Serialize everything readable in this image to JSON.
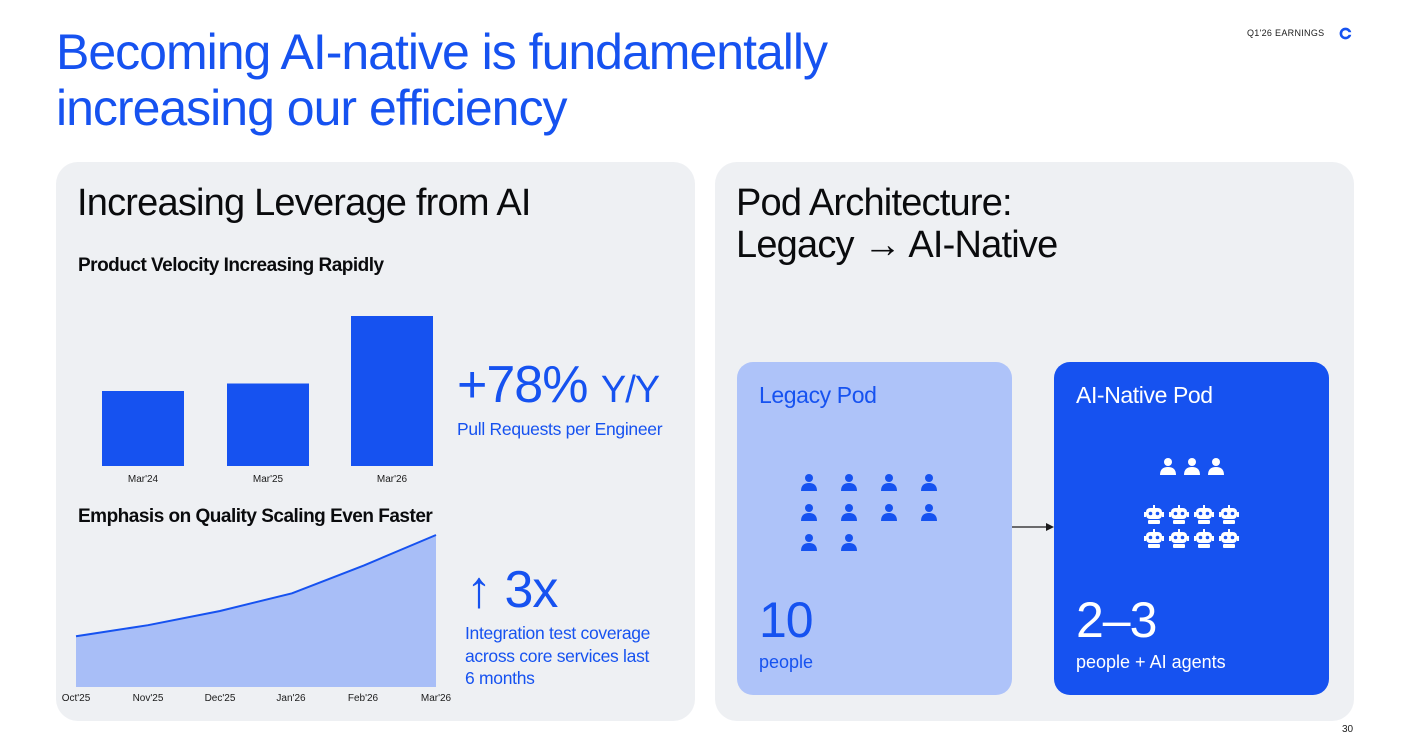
{
  "header": {
    "title_line1": "Becoming AI-native is fundamentally",
    "title_line2": "increasing our efficiency",
    "report_tag": "Q1'26 EARNINGS",
    "page_number": "30"
  },
  "left_panel": {
    "title": "Increasing Leverage from AI",
    "velocity": {
      "subtitle": "Product Velocity Increasing Rapidly",
      "stat_value": "+78%",
      "stat_suffix": "Y/Y",
      "stat_desc": "Pull Requests per Engineer"
    },
    "quality": {
      "subtitle": "Emphasis on Quality Scaling Even Faster",
      "stat_arrow": "↑",
      "stat_value": "3x",
      "stat_desc_lines": [
        "Integration test coverage",
        "across core services last",
        "6 months"
      ]
    }
  },
  "right_panel": {
    "title_line1": "Pod Architecture:",
    "title_line2": "Legacy → AI-Native",
    "legacy_pod": {
      "label": "Legacy Pod",
      "count": "10",
      "desc": "people",
      "person_icons": 10
    },
    "ai_pod": {
      "label": "AI-Native Pod",
      "count": "2–3",
      "desc": "people + AI agents",
      "person_icons": 3,
      "robot_icons": 8
    }
  },
  "colors": {
    "accent": "#1652f0",
    "area_fill": "#a8bef7",
    "legacy_pod_bg": "#aec3f9",
    "panel_bg": "#eef0f3"
  },
  "icons": {
    "logo": "coinbase-c-icon",
    "person": "person-icon",
    "robot": "robot-icon",
    "arrow": "arrow-right-icon"
  },
  "chart_data": [
    {
      "type": "bar",
      "categories": [
        "Mar'24",
        "Mar'25",
        "Mar'26"
      ],
      "values": [
        1.0,
        1.1,
        2.0
      ],
      "ylim": [
        0,
        2.0
      ],
      "grid": false,
      "legend": "none"
    },
    {
      "type": "area",
      "x": [
        "Oct'25",
        "Nov'25",
        "Dec'25",
        "Jan'26",
        "Feb'26",
        "Mar'26"
      ],
      "values": [
        1.0,
        1.22,
        1.5,
        1.85,
        2.4,
        3.0
      ],
      "ylim": [
        0,
        3.0
      ],
      "grid": false,
      "legend": "none"
    }
  ]
}
